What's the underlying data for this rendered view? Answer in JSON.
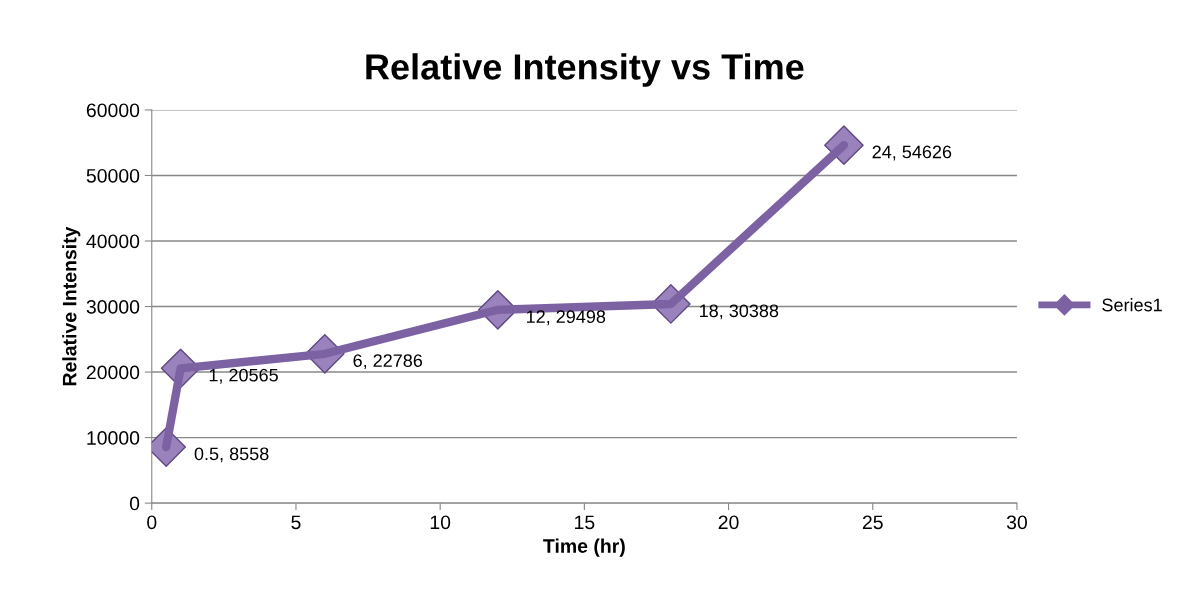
{
  "chart_data": {
    "type": "line",
    "title": "Relative Intensity vs Time",
    "xlabel": "Time (hr)",
    "ylabel": "Relative Intensity",
    "x": [
      0.5,
      1,
      6,
      12,
      18,
      24
    ],
    "series": [
      {
        "name": "Series1",
        "color": "#7d62a3",
        "values": [
          8558,
          20565,
          22786,
          29498,
          30388,
          54626
        ],
        "value_labels": [
          "0.5, 8558",
          "1, 20565",
          "6, 22786",
          "12, 29498",
          "18, 30388",
          "24, 54626"
        ]
      }
    ],
    "xlim": [
      0,
      30
    ],
    "xticks": [
      0,
      5,
      10,
      15,
      20,
      25,
      30
    ],
    "ylim": [
      0,
      60000
    ],
    "yticks": [
      0,
      10000,
      20000,
      30000,
      40000,
      50000,
      60000
    ],
    "grid": "y",
    "legend": "right",
    "marker": "diamond",
    "line_style": "solid"
  }
}
